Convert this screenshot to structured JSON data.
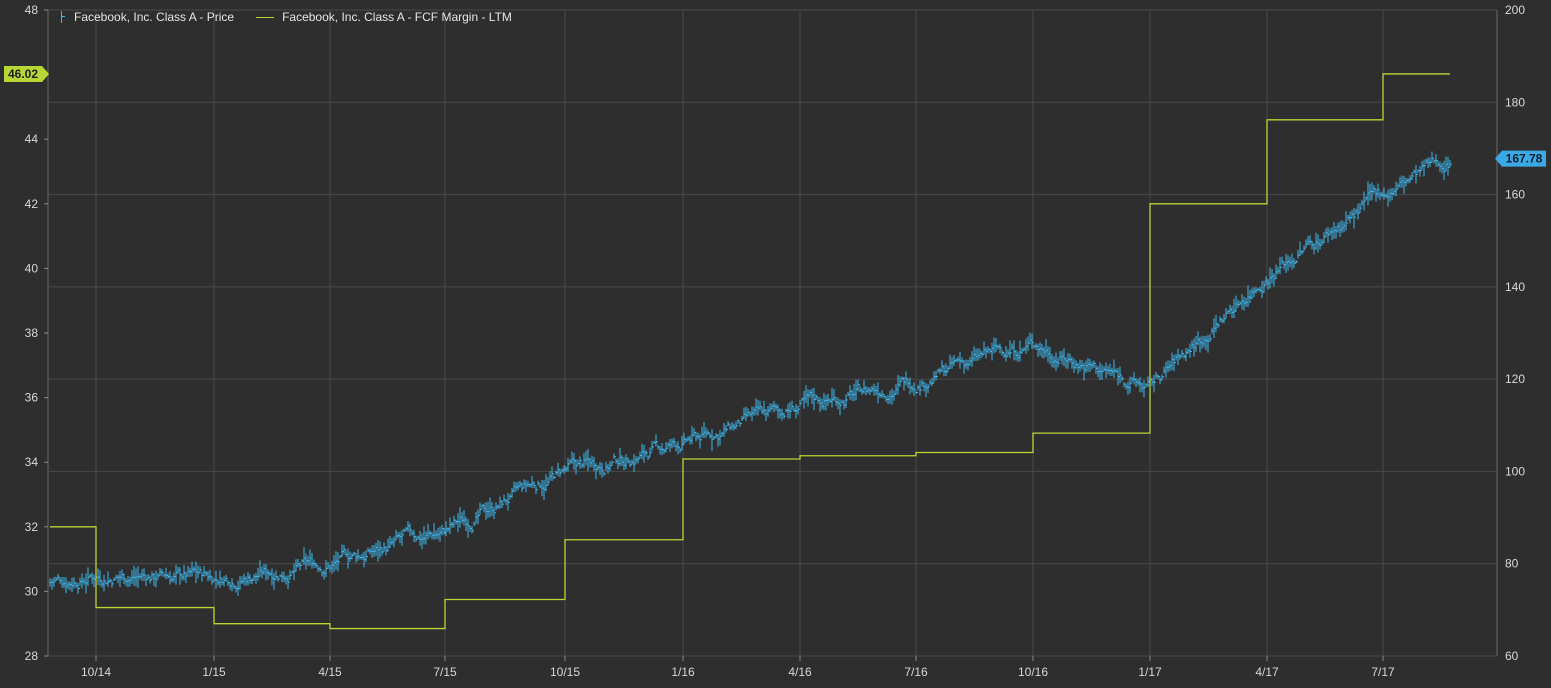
{
  "chart_data": {
    "type": "line",
    "legend": [
      {
        "name": "Facebook, Inc. Class A - Price",
        "color": "#3fb8f0",
        "style": "ohlc-bars",
        "axis": "right"
      },
      {
        "name": "Facebook, Inc. Class A - FCF Margin - LTM",
        "color": "#b7d736",
        "style": "step-line",
        "axis": "left"
      }
    ],
    "legend_position": "top-left",
    "grid": true,
    "x_ticks": [
      "10/14",
      "1/15",
      "4/15",
      "7/15",
      "10/15",
      "1/16",
      "4/16",
      "7/16",
      "10/16",
      "1/17",
      "4/17",
      "7/17"
    ],
    "y_left": {
      "ticks": [
        28,
        30,
        32,
        34,
        36,
        38,
        40,
        42,
        44,
        46,
        48
      ],
      "labeled_ticks": [
        28,
        30,
        32,
        34,
        36,
        38,
        40,
        42,
        44,
        48
      ],
      "range": [
        28,
        48
      ]
    },
    "y_right": {
      "ticks": [
        60,
        80,
        100,
        120,
        140,
        160,
        180,
        200
      ],
      "range": [
        60,
        200
      ]
    },
    "fcf_margin_ltm": {
      "x": [
        "start",
        "10/14",
        "1/15",
        "4/15",
        "7/15",
        "10/15",
        "1/16",
        "4/16",
        "7/16",
        "10/16",
        "1/17",
        "4/17",
        "7/17",
        "end"
      ],
      "values": [
        32.0,
        29.5,
        29.0,
        28.85,
        29.75,
        31.6,
        34.1,
        34.2,
        34.3,
        34.9,
        42.0,
        44.6,
        46.02,
        46.02
      ]
    },
    "price": {
      "x": [
        "start",
        "10/14",
        "1/15",
        "4/15",
        "7/15",
        "10/15",
        "1/16",
        "4/16",
        "7/16",
        "10/16",
        "1/17",
        "4/17",
        "7/17",
        "end"
      ],
      "values": [
        76,
        78,
        77,
        80,
        87,
        100,
        106,
        114,
        120,
        128,
        118,
        143,
        160,
        167.78
      ]
    },
    "last_value_tags": {
      "fcf_margin": "46.02",
      "price": "167.78"
    }
  }
}
